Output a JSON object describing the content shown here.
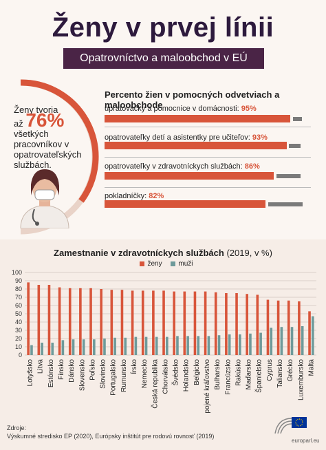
{
  "header": {
    "title": "Ženy v prvej línii",
    "subtitle": "Opatrovníctvo a maloobchod v EÚ"
  },
  "highlight": {
    "line1": "Ženy tvoria",
    "prefix": "až",
    "value": "76%",
    "line2": "všetkých pracovníkov v opatrovateľských službách.",
    "value_num": 76
  },
  "occupations": {
    "title": "Percento žien v pomocných odvetviach a maloobchode",
    "items": [
      {
        "label": "upratovačky a pomocnice v domácnosti:",
        "value_text": "95%",
        "value": 95
      },
      {
        "label": "opatrovateľky detí a asistentky pre učiteľov:",
        "value_text": "93%",
        "value": 93
      },
      {
        "label": "opatrovateľky v zdravotníckych službách:",
        "value_text": "86%",
        "value": 86
      },
      {
        "label": "pokladníčky:",
        "value_text": "82%",
        "value": 82
      }
    ]
  },
  "chart_data": {
    "type": "bar",
    "title": "Zamestnanie v zdravotníckych službách",
    "title_suffix": "(2019, v %)",
    "ylim": [
      0,
      100
    ],
    "yticks": [
      0,
      10,
      20,
      30,
      40,
      50,
      60,
      70,
      80,
      90,
      100
    ],
    "grid": true,
    "legend": "top",
    "categories": [
      "Lotyšsko",
      "Litva",
      "Estónsko",
      "Fínsko",
      "Dánsko",
      "Slovensko",
      "Poľsko",
      "Slovinsko",
      "Portugalsko",
      "Rumunsko",
      "Írsko",
      "Nemecko",
      "Česká republika",
      "Chorvátsko",
      "Švédsko",
      "Holandsko",
      "Belgicko",
      "Spojené kráľovstvo",
      "Bulharsko",
      "Francúzsko",
      "Rakúsko",
      "Maďarsko",
      "Španielsko",
      "Cyprus",
      "Taliansko",
      "Grécko",
      "Luxembursko",
      "Malta"
    ],
    "series": [
      {
        "name": "ženy",
        "color": "#d8553a",
        "values": [
          88,
          85,
          85,
          82,
          81,
          81,
          81,
          80,
          79,
          79,
          78,
          78,
          78,
          78,
          77,
          77,
          77,
          77,
          76,
          75,
          75,
          74,
          73,
          67,
          66,
          66,
          65,
          53
        ]
      },
      {
        "name": "muži",
        "color": "#6e9a9a",
        "values": [
          12,
          15,
          15,
          18,
          19,
          19,
          19,
          20,
          21,
          21,
          22,
          22,
          22,
          22,
          23,
          23,
          23,
          23,
          24,
          25,
          25,
          26,
          27,
          33,
          34,
          34,
          35,
          47
        ]
      }
    ]
  },
  "footer": {
    "source_label": "Zdroje:",
    "source_text": "Výskumné stredisko EP (2020), Európsky inštitút pre rodovú rovnosť (2019)",
    "eu_url": "europarl.eu",
    "eu_flag_color": "#003399"
  }
}
